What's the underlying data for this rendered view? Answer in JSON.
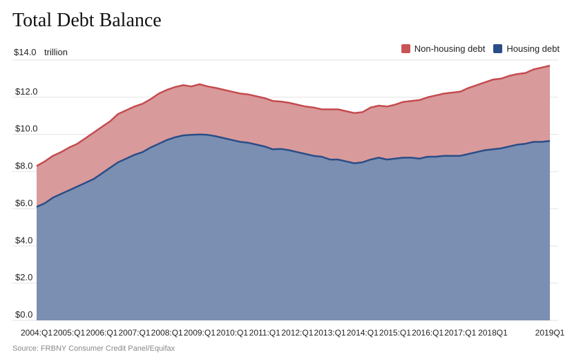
{
  "chart_data": {
    "type": "area",
    "title": "Total Debt Balance",
    "ylabel_prefix": "$14.0",
    "ylabel_unit": "trillion",
    "ylim": [
      0,
      14.0
    ],
    "y_ticks": [
      "$0.0",
      "$2.0",
      "$4.0",
      "$6.0",
      "$8.0",
      "$10.0",
      "$12.0"
    ],
    "x_tick_labels": [
      "2004:Q1",
      "2005:Q1",
      "2006:Q1",
      "2007:Q1",
      "2008:Q1",
      "2009:Q1",
      "2010:Q1",
      "2011:Q1",
      "2012:Q1",
      "2013:Q1",
      "2014:Q1",
      "2015:Q1",
      "2016:Q1",
      "2017:Q1",
      "2018Q1",
      "2019Q1"
    ],
    "grid": true,
    "legend_position": "top-right",
    "stacked": true,
    "series": [
      {
        "name": "Housing debt",
        "color": "#2a4d87",
        "fill": "#7b8fb2",
        "values": [
          6.1,
          6.3,
          6.6,
          6.8,
          7.0,
          7.2,
          7.4,
          7.6,
          7.9,
          8.2,
          8.5,
          8.7,
          8.9,
          9.05,
          9.3,
          9.5,
          9.7,
          9.85,
          9.95,
          9.98,
          10.0,
          9.98,
          9.9,
          9.8,
          9.7,
          9.6,
          9.55,
          9.45,
          9.35,
          9.2,
          9.22,
          9.15,
          9.05,
          8.95,
          8.85,
          8.8,
          8.65,
          8.65,
          8.55,
          8.45,
          8.5,
          8.65,
          8.75,
          8.65,
          8.7,
          8.75,
          8.75,
          8.7,
          8.8,
          8.8,
          8.85,
          8.85,
          8.85,
          8.95,
          9.05,
          9.15,
          9.2,
          9.25,
          9.35,
          9.45,
          9.5,
          9.6,
          9.6,
          9.65
        ]
      },
      {
        "name": "Non-housing debt",
        "color": "#c44b4f",
        "fill": "#d89a9b",
        "values": [
          2.2,
          2.25,
          2.25,
          2.25,
          2.3,
          2.3,
          2.4,
          2.5,
          2.5,
          2.5,
          2.6,
          2.6,
          2.6,
          2.6,
          2.6,
          2.7,
          2.7,
          2.7,
          2.7,
          2.6,
          2.7,
          2.6,
          2.6,
          2.6,
          2.6,
          2.6,
          2.6,
          2.6,
          2.6,
          2.6,
          2.55,
          2.55,
          2.55,
          2.55,
          2.6,
          2.55,
          2.7,
          2.7,
          2.7,
          2.7,
          2.7,
          2.8,
          2.8,
          2.85,
          2.9,
          3.0,
          3.05,
          3.15,
          3.2,
          3.3,
          3.35,
          3.4,
          3.45,
          3.55,
          3.6,
          3.65,
          3.75,
          3.75,
          3.8,
          3.8,
          3.8,
          3.9,
          4.0,
          4.05
        ]
      }
    ]
  },
  "source_text": "Source: FRBNY Consumer Credit Panel/Equifax"
}
